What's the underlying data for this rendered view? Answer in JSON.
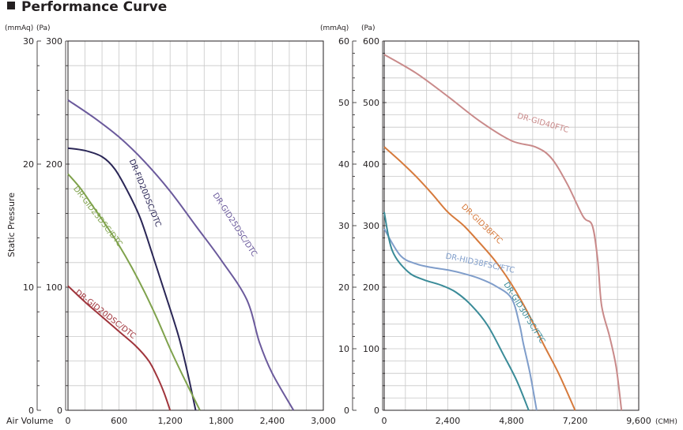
{
  "title": "Performance Curve",
  "ylabel": "Static Pressure",
  "xlabel": "Air Volume",
  "chart_data": [
    {
      "type": "line",
      "xlim": [
        0,
        3000
      ],
      "ylim": [
        0,
        300
      ],
      "x_ticks": [
        "0",
        "600",
        "1,200",
        "1,800",
        "2,400",
        "3,000"
      ],
      "y_ticks_pa": [
        "0",
        "100",
        "200",
        "300"
      ],
      "y_ticks_mmaq": [
        "0",
        "10",
        "20",
        "30"
      ],
      "y_unit_left": "(mmAq)",
      "y_unit_right": "(Pa)",
      "grid": true,
      "series": [
        {
          "name": "DR-GID25DSC/DTC",
          "color": "#6b5a9c",
          "points": [
            [
              0,
              252
            ],
            [
              300,
              238
            ],
            [
              600,
              222
            ],
            [
              900,
              202
            ],
            [
              1200,
              178
            ],
            [
              1500,
              150
            ],
            [
              1800,
              122
            ],
            [
              2100,
              90
            ],
            [
              2250,
              55
            ],
            [
              2400,
              30
            ],
            [
              2650,
              0
            ]
          ]
        },
        {
          "name": "DR-FID20DSC/DTC",
          "color": "#2a2656",
          "points": [
            [
              0,
              213
            ],
            [
              200,
              211
            ],
            [
              400,
              206
            ],
            [
              550,
              196
            ],
            [
              700,
              178
            ],
            [
              850,
              156
            ],
            [
              1000,
              125
            ],
            [
              1150,
              93
            ],
            [
              1300,
              60
            ],
            [
              1400,
              32
            ],
            [
              1500,
              0
            ]
          ]
        },
        {
          "name": "DR-GID23DSC/DTC",
          "color": "#7fa24c",
          "points": [
            [
              0,
              192
            ],
            [
              150,
              180
            ],
            [
              300,
              165
            ],
            [
              450,
              150
            ],
            [
              600,
              134
            ],
            [
              750,
              116
            ],
            [
              900,
              96
            ],
            [
              1050,
              74
            ],
            [
              1200,
              50
            ],
            [
              1350,
              28
            ],
            [
              1550,
              0
            ]
          ]
        },
        {
          "name": "DR-GID20DSC/DTC",
          "color": "#a0353c",
          "points": [
            [
              0,
              101
            ],
            [
              200,
              88
            ],
            [
              400,
              76
            ],
            [
              600,
              64
            ],
            [
              800,
              52
            ],
            [
              950,
              40
            ],
            [
              1050,
              27
            ],
            [
              1130,
              14
            ],
            [
              1200,
              0
            ]
          ]
        }
      ]
    },
    {
      "type": "line",
      "xlim": [
        0,
        9600
      ],
      "ylim": [
        0,
        600
      ],
      "x_ticks": [
        "0",
        "2,400",
        "4,800",
        "7,200",
        "9,600"
      ],
      "x_unit": "(CMH)",
      "y_ticks_pa": [
        "0",
        "100",
        "200",
        "300",
        "400",
        "500",
        "600"
      ],
      "y_ticks_mmaq": [
        "0",
        "10",
        "20",
        "30",
        "40",
        "50",
        "60"
      ],
      "y_unit_left": "(mmAq)",
      "y_unit_right": "(Pa)",
      "grid": true,
      "series": [
        {
          "name": "DR-GID40FTC",
          "color": "#c98a8a",
          "points": [
            [
              0,
              578
            ],
            [
              1200,
              548
            ],
            [
              2400,
              510
            ],
            [
              3600,
              470
            ],
            [
              4800,
              438
            ],
            [
              5700,
              428
            ],
            [
              6300,
              410
            ],
            [
              6900,
              368
            ],
            [
              7500,
              315
            ],
            [
              7850,
              300
            ],
            [
              8050,
              245
            ],
            [
              8200,
              170
            ],
            [
              8500,
              120
            ],
            [
              8750,
              70
            ],
            [
              8950,
              0
            ]
          ]
        },
        {
          "name": "DR-GID38FTC",
          "color": "#d67a3c",
          "points": [
            [
              0,
              428
            ],
            [
              600,
              405
            ],
            [
              1200,
              380
            ],
            [
              1800,
              352
            ],
            [
              2400,
              322
            ],
            [
              3000,
              300
            ],
            [
              3600,
              272
            ],
            [
              4200,
              242
            ],
            [
              4800,
              205
            ],
            [
              5400,
              160
            ],
            [
              6000,
              108
            ],
            [
              6600,
              58
            ],
            [
              7200,
              0
            ]
          ]
        },
        {
          "name": "DR-HID38FSC/FTC",
          "color": "#7f9dca",
          "points": [
            [
              0,
              295
            ],
            [
              600,
              252
            ],
            [
              1200,
              238
            ],
            [
              1800,
              232
            ],
            [
              2400,
              228
            ],
            [
              3000,
              222
            ],
            [
              3600,
              214
            ],
            [
              4200,
              202
            ],
            [
              4800,
              182
            ],
            [
              5100,
              140
            ],
            [
              5250,
              108
            ],
            [
              5500,
              60
            ],
            [
              5750,
              0
            ]
          ]
        },
        {
          "name": "DR-GID30FSC/FTC",
          "color": "#3a8b98",
          "points": [
            [
              0,
              322
            ],
            [
              300,
              260
            ],
            [
              900,
              225
            ],
            [
              1500,
              212
            ],
            [
              2100,
              204
            ],
            [
              2700,
              192
            ],
            [
              3300,
              170
            ],
            [
              3900,
              138
            ],
            [
              4500,
              90
            ],
            [
              5000,
              48
            ],
            [
              5450,
              0
            ]
          ]
        }
      ]
    }
  ]
}
